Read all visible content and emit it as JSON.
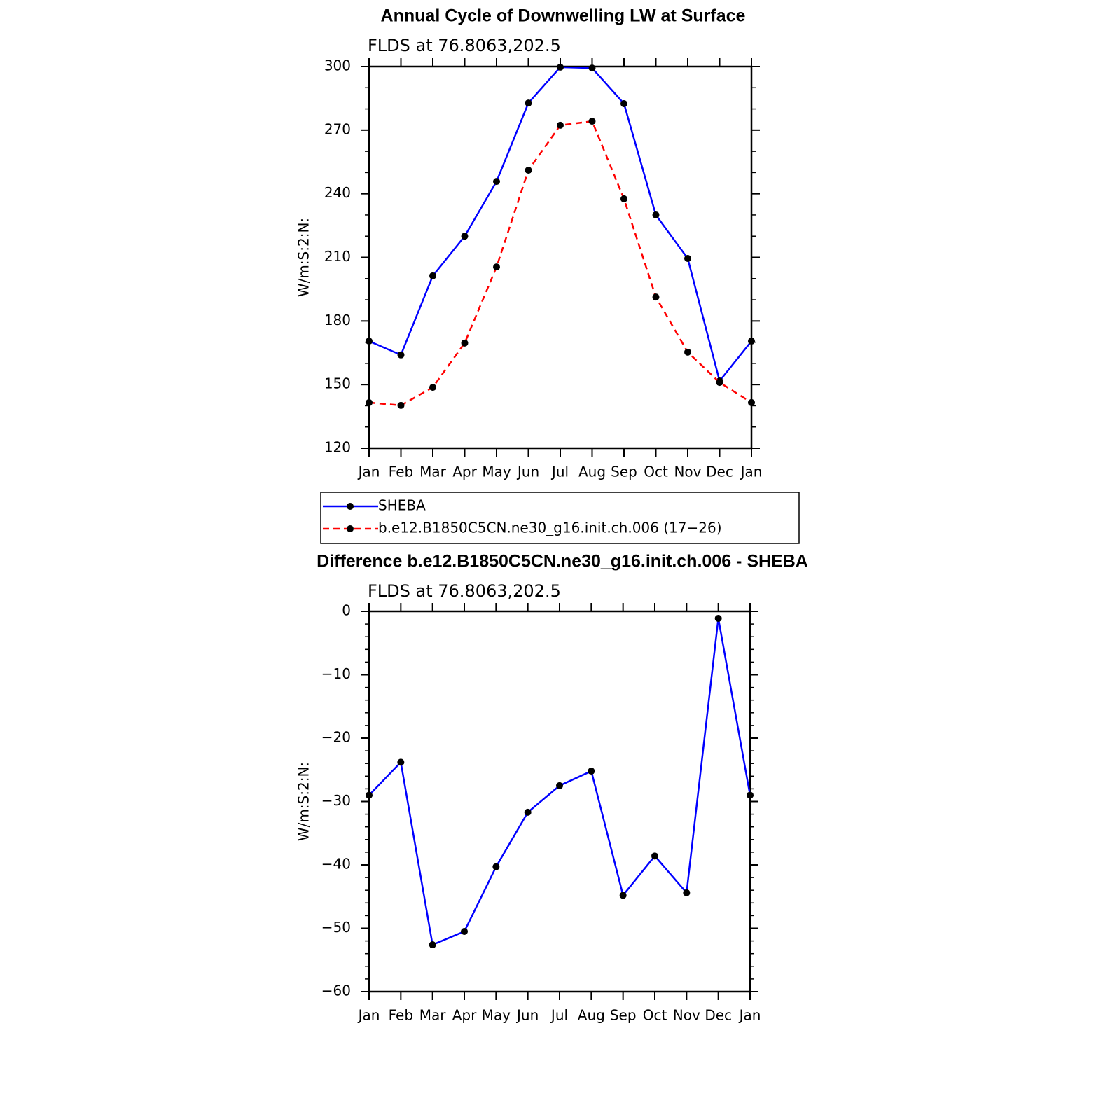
{
  "chart_data": [
    {
      "type": "line",
      "title": "Annual Cycle of Downwelling LW at Surface",
      "subtitle": "FLDS at 76.8063,202.5",
      "ylabel": "W/m:S:2:N:",
      "categories": [
        "Jan",
        "Feb",
        "Mar",
        "Apr",
        "May",
        "Jun",
        "Jul",
        "Aug",
        "Sep",
        "Oct",
        "Nov",
        "Dec",
        "Jan"
      ],
      "series": [
        {
          "name": "SHEBA",
          "color": "#0000ff",
          "line_style": "solid",
          "values": [
            170.5,
            164,
            201.3,
            220,
            245.8,
            282.8,
            299.7,
            299.3,
            282.5,
            230,
            209.5,
            151.7,
            170.5
          ]
        },
        {
          "name": "b.e12.B1850C5CN.ne30_g16.init.ch.006 (17−26)",
          "color": "#ff0000",
          "line_style": "dashed",
          "values": [
            141.5,
            140.2,
            148.7,
            169.6,
            205.5,
            251.1,
            272.3,
            274.2,
            237.6,
            191.3,
            165.3,
            151,
            141.5
          ]
        }
      ],
      "marker_color": "#000000",
      "ylim": [
        120,
        300
      ],
      "yticks": [
        120,
        150,
        180,
        210,
        240,
        270,
        300
      ],
      "legend": "below"
    },
    {
      "type": "line",
      "title": "Difference b.e12.B1850C5CN.ne30_g16.init.ch.006 - SHEBA",
      "subtitle": "FLDS at 76.8063,202.5",
      "ylabel": "W/m:S:2:N:",
      "categories": [
        "Jan",
        "Feb",
        "Mar",
        "Apr",
        "May",
        "Jun",
        "Jul",
        "Aug",
        "Sep",
        "Oct",
        "Nov",
        "Dec",
        "Jan"
      ],
      "values": [
        -29,
        -23.8,
        -52.6,
        -50.5,
        -40.3,
        -31.7,
        -27.5,
        -25.2,
        -44.8,
        -38.6,
        -44.4,
        -1.1,
        -29
      ],
      "color": "#0000ff",
      "marker_color": "#000000",
      "ylim": [
        -60,
        0
      ],
      "yticks": [
        {
          "value": -60,
          "label": "−60"
        },
        {
          "value": -50,
          "label": "−50"
        },
        {
          "value": -40,
          "label": "−40"
        },
        {
          "value": -30,
          "label": "−30"
        },
        {
          "value": -20,
          "label": "−20"
        },
        {
          "value": -10,
          "label": "−10"
        },
        0
      ]
    }
  ]
}
